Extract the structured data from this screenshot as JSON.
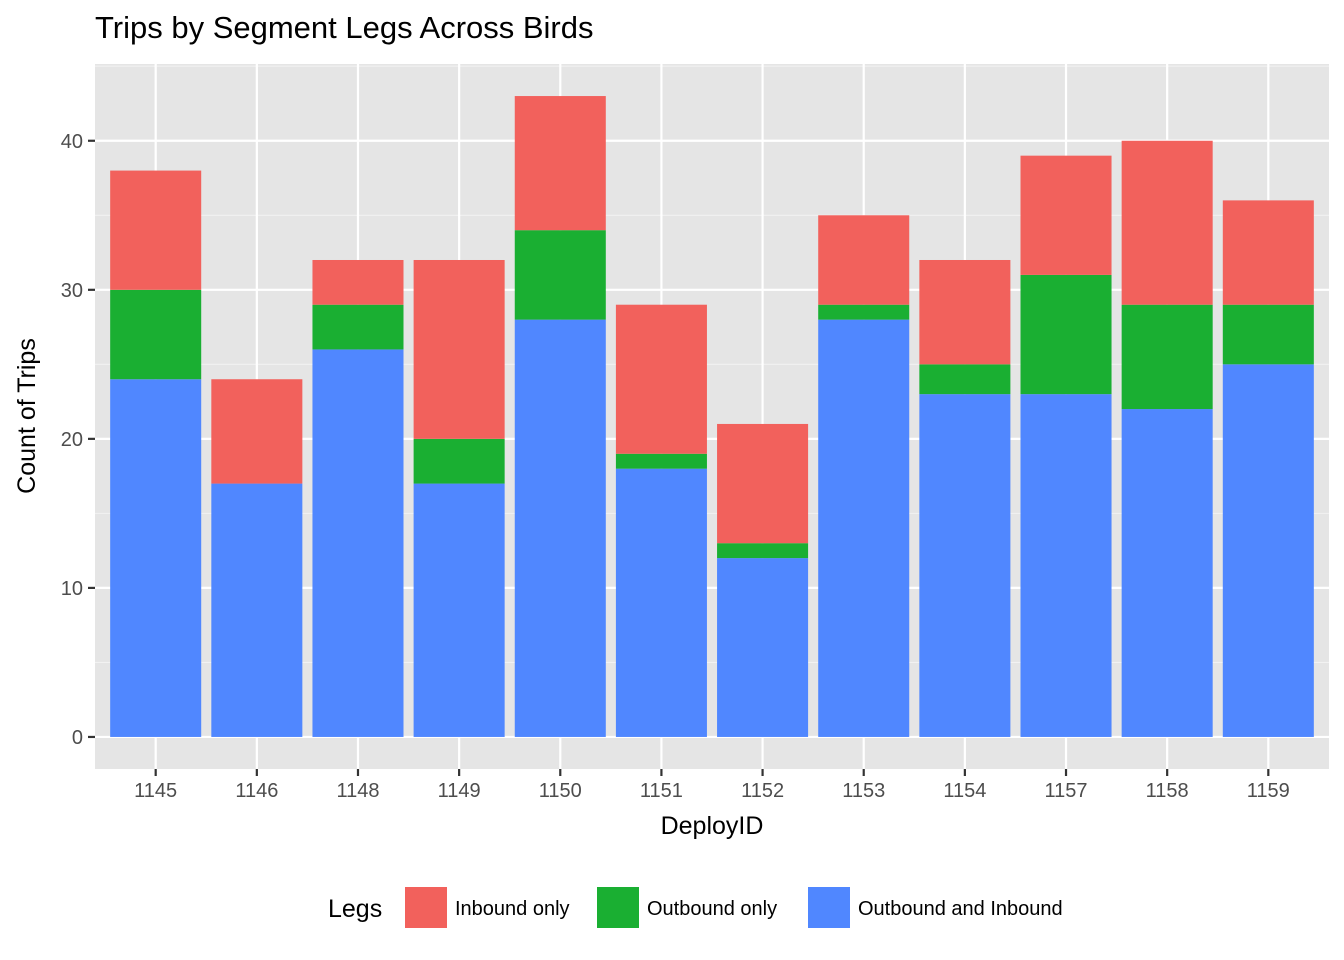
{
  "chart_data": {
    "type": "bar",
    "stacked": true,
    "title": "Trips by Segment Legs Across Birds",
    "xlabel": "DeployID",
    "ylabel": "Count of Trips",
    "categories": [
      "1145",
      "1146",
      "1148",
      "1149",
      "1150",
      "1151",
      "1152",
      "1153",
      "1154",
      "1157",
      "1158",
      "1159"
    ],
    "series": [
      {
        "name": "Outbound and Inbound",
        "color": "#5087FF",
        "values": [
          24,
          17,
          26,
          17,
          28,
          18,
          12,
          28,
          23,
          23,
          22,
          25
        ]
      },
      {
        "name": "Outbound only",
        "color": "#1AAF32",
        "values": [
          6,
          0,
          3,
          3,
          6,
          1,
          1,
          1,
          2,
          8,
          7,
          4
        ]
      },
      {
        "name": "Inbound only",
        "color": "#F2615C",
        "values": [
          8,
          7,
          3,
          12,
          9,
          10,
          8,
          6,
          7,
          8,
          11,
          7
        ]
      }
    ],
    "yticks": [
      0,
      10,
      20,
      30,
      40
    ],
    "ylim": [
      -2.15,
      45.15
    ],
    "grid": true,
    "legend": {
      "title": "Legs",
      "position": "bottom",
      "order": [
        "Inbound only",
        "Outbound only",
        "Outbound and Inbound"
      ]
    }
  }
}
